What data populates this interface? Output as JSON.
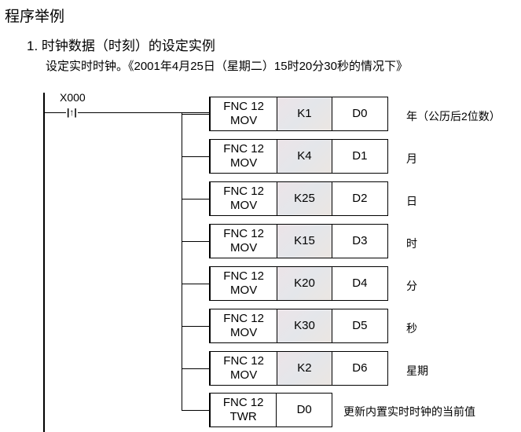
{
  "heading": "程序举例",
  "subheading": "1. 时钟数据（时刻）的设定实例",
  "description": "设定实时时钟。《2001年4月25日（星期二）15时20分30秒的情况下》",
  "contact": {
    "label": "X000",
    "symbol": "|↑|"
  },
  "rows": [
    {
      "fnc": "FNC 12",
      "op": "MOV",
      "src": "K1",
      "dst": "D0",
      "note": "年（公历后2位数）"
    },
    {
      "fnc": "FNC 12",
      "op": "MOV",
      "src": "K4",
      "dst": "D1",
      "note": "月"
    },
    {
      "fnc": "FNC 12",
      "op": "MOV",
      "src": "K25",
      "dst": "D2",
      "note": "日"
    },
    {
      "fnc": "FNC 12",
      "op": "MOV",
      "src": "K15",
      "dst": "D3",
      "note": "时"
    },
    {
      "fnc": "FNC 12",
      "op": "MOV",
      "src": "K20",
      "dst": "D4",
      "note": "分"
    },
    {
      "fnc": "FNC 12",
      "op": "MOV",
      "src": "K30",
      "dst": "D5",
      "note": "秒"
    },
    {
      "fnc": "FNC 12",
      "op": "MOV",
      "src": "K2",
      "dst": "D6",
      "note": "星期"
    }
  ],
  "twr": {
    "fnc": "FNC 12",
    "op": "TWR",
    "dst": "D0",
    "note": "更新内置实时时钟的当前值"
  }
}
